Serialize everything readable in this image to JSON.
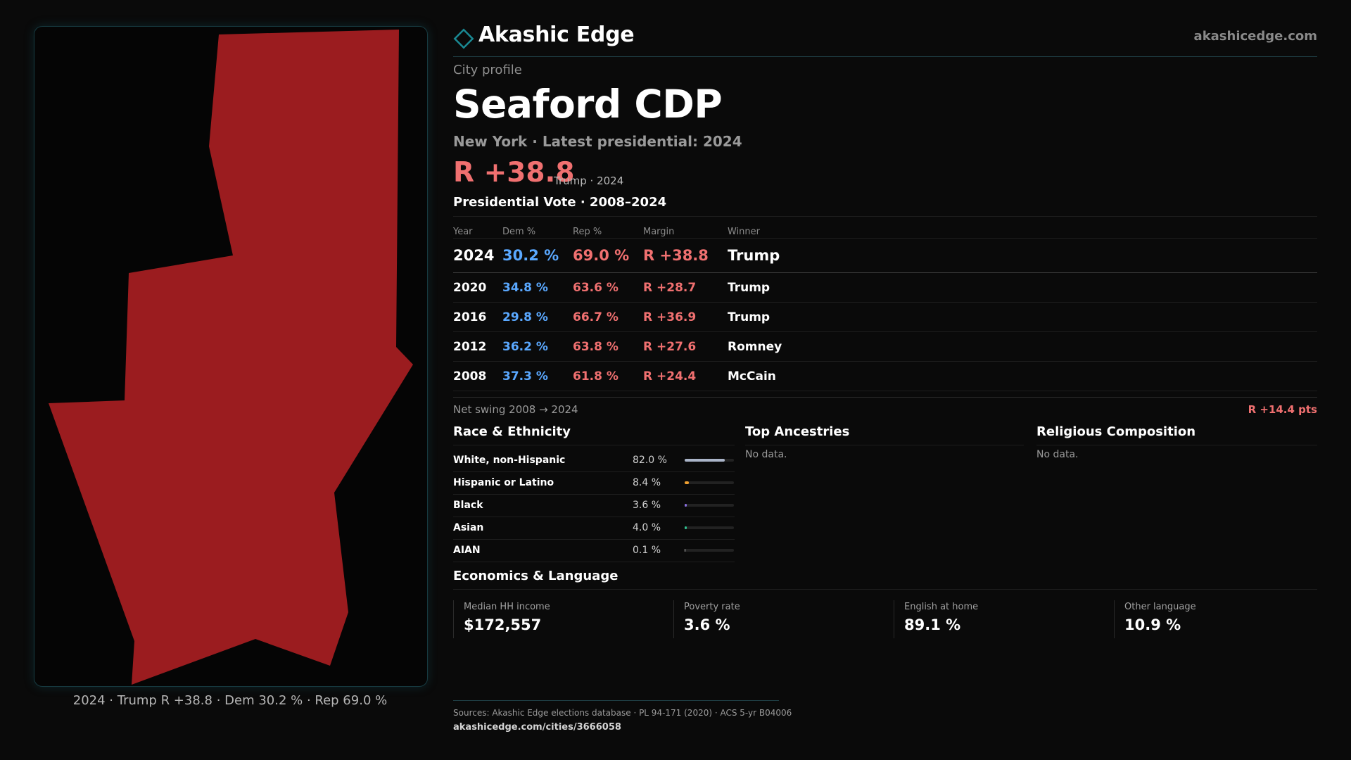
{
  "header": {
    "brand": "Akashic Edge",
    "site": "akashicedge.com",
    "logo_icon": "diamond-icon",
    "accent_color": "#1a8a94"
  },
  "profile": {
    "kicker": "City profile",
    "city": "Seaford CDP",
    "subtitle": "New York · Latest presidential: 2024",
    "margin": "R +38.8",
    "margin_note": "Trump · 2024"
  },
  "map": {
    "caption": "2024 · Trump R +38.8 · Dem 30.2 % · Rep 69.0 %",
    "fill_color": "#9b1c1f"
  },
  "vote": {
    "title": "Presidential Vote · 2008–2024",
    "headers": {
      "year": "Year",
      "dem": "Dem %",
      "rep": "Rep %",
      "margin": "Margin",
      "winner": "Winner"
    },
    "rows": [
      {
        "year": "2024",
        "dem": "30.2 %",
        "rep": "69.0 %",
        "margin": "R +38.8",
        "winner": "Trump"
      },
      {
        "year": "2020",
        "dem": "34.8 %",
        "rep": "63.6 %",
        "margin": "R +28.7",
        "winner": "Trump"
      },
      {
        "year": "2016",
        "dem": "29.8 %",
        "rep": "66.7 %",
        "margin": "R +36.9",
        "winner": "Trump"
      },
      {
        "year": "2012",
        "dem": "36.2 %",
        "rep": "63.8 %",
        "margin": "R +27.6",
        "winner": "Romney"
      },
      {
        "year": "2008",
        "dem": "37.3 %",
        "rep": "61.8 %",
        "margin": "R +24.4",
        "winner": "McCain"
      }
    ],
    "swing_label": "Net swing 2008 → 2024",
    "swing_value": "R +14.4 pts"
  },
  "race": {
    "title": "Race & Ethnicity",
    "rows": [
      {
        "label": "White, non-Hispanic",
        "pct": "82.0 %",
        "value": 82.0,
        "color": "#aab4c8"
      },
      {
        "label": "Hispanic or Latino",
        "pct": "8.4 %",
        "value": 8.4,
        "color": "#f0a030"
      },
      {
        "label": "Black",
        "pct": "3.6 %",
        "value": 3.6,
        "color": "#8a70e0"
      },
      {
        "label": "Asian",
        "pct": "4.0 %",
        "value": 4.0,
        "color": "#30c090"
      },
      {
        "label": "AIAN",
        "pct": "0.1 %",
        "value": 0.1,
        "color": "#c0c0c0"
      }
    ]
  },
  "ancestries": {
    "title": "Top Ancestries",
    "empty": "No data."
  },
  "religion": {
    "title": "Religious Composition",
    "empty": "No data."
  },
  "economics": {
    "title": "Economics & Language",
    "stats": [
      {
        "label": "Median HH income",
        "value": "$172,557"
      },
      {
        "label": "Poverty rate",
        "value": "3.6 %"
      },
      {
        "label": "English at home",
        "value": "89.1 %"
      },
      {
        "label": "Other language",
        "value": "10.9 %"
      }
    ]
  },
  "footer": {
    "sources": "Sources: Akashic Edge elections database · PL 94-171 (2020) · ACS 5-yr B04006",
    "url": "akashicedge.com/cities/3666058"
  }
}
